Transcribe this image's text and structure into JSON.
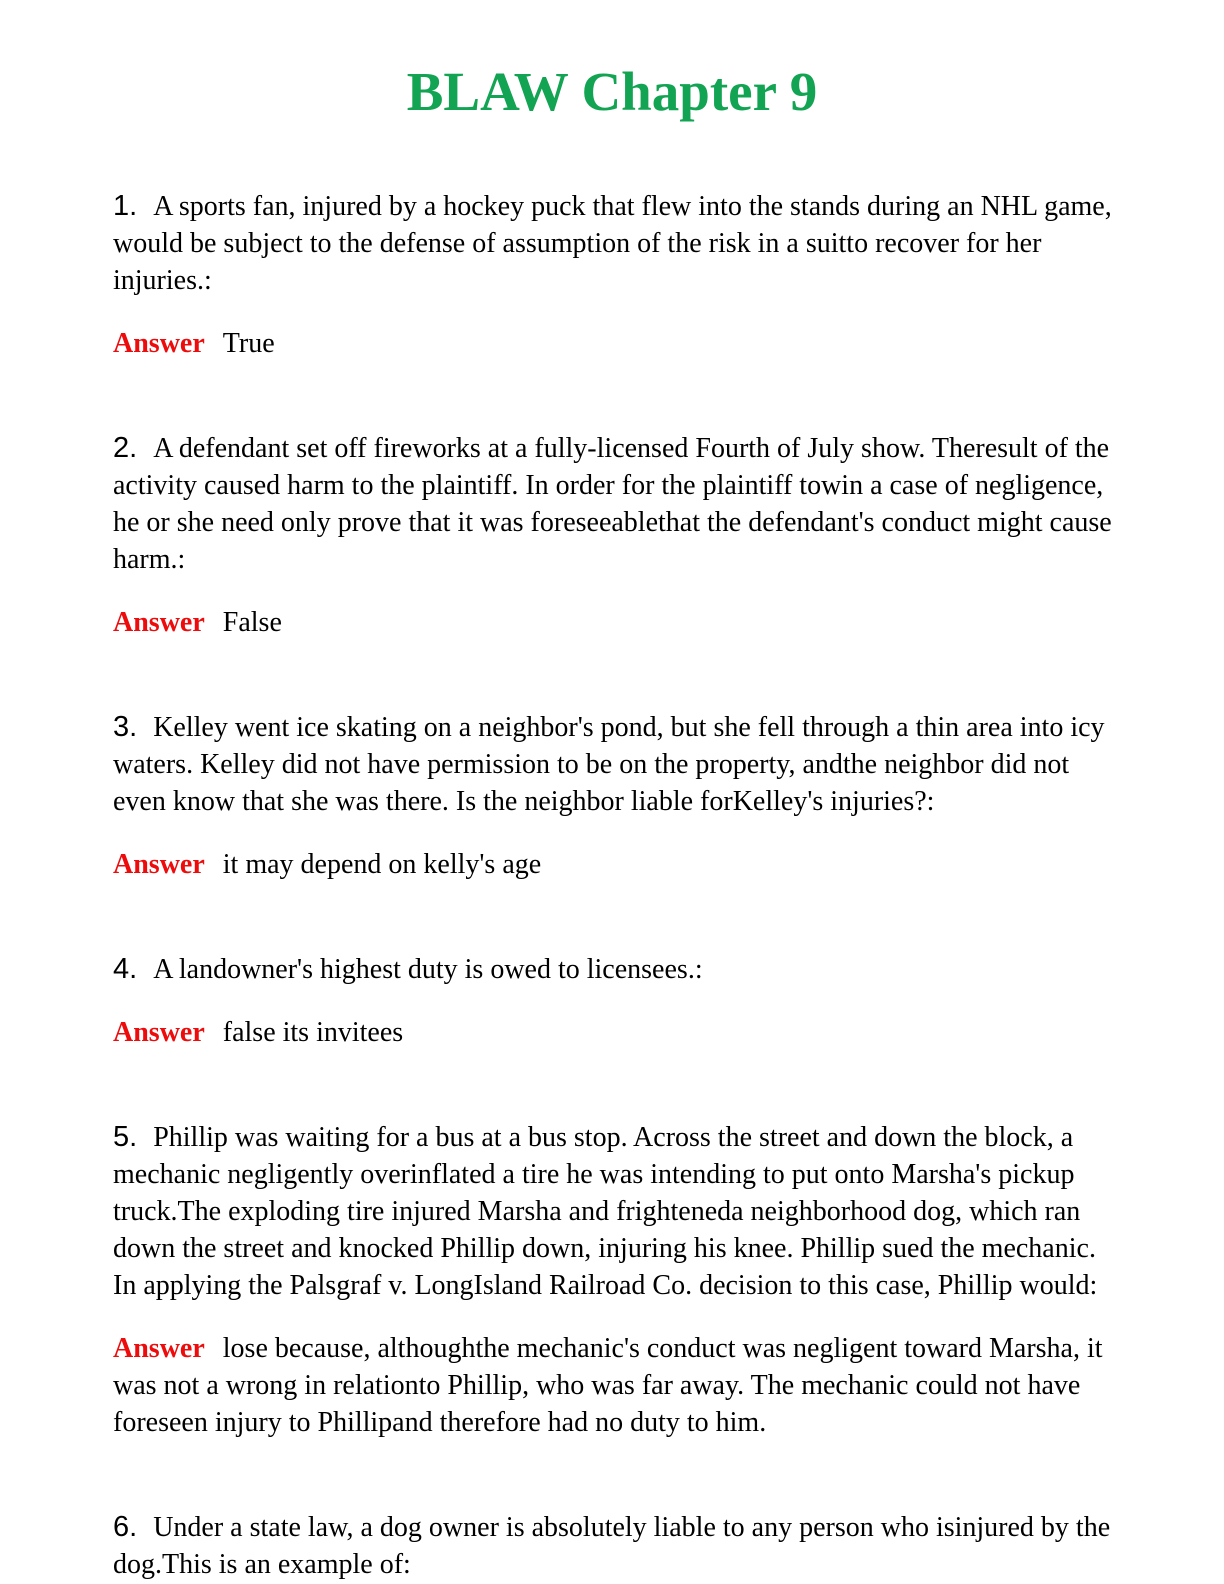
{
  "document": {
    "title": "BLAW Chapter 9",
    "answer_label": "Answer",
    "title_color": "#12a452",
    "answer_label_color": "#ee0b0b"
  },
  "questions": [
    {
      "number": "1.",
      "text": "A sports fan, injured by a hockey puck that flew into the stands during an NHL game, would be subject to the defense of assumption of the risk in a suitto recover for her injuries.:",
      "answer": "True"
    },
    {
      "number": "2.",
      "text": "A defendant set off fireworks at a fully-licensed Fourth of July show. Theresult of the activity caused harm to the plaintiff. In order for the plaintiff towin a case of negligence, he or she need only prove that it was foreseeablethat the defendant's conduct might cause harm.:",
      "answer": "False"
    },
    {
      "number": "3.",
      "text": "Kelley went ice skating on a neighbor's pond, but she fell through a thin area into icy waters. Kelley did not have permission to be on the property, andthe neighbor did not even know that she was there. Is the neighbor liable forKelley's injuries?:",
      "answer": "it may depend on kelly's age"
    },
    {
      "number": "4.",
      "text": "A landowner's highest duty is owed to licensees.:",
      "answer": "false its invitees"
    },
    {
      "number": "5.",
      "text": "Phillip was waiting for a bus at a bus stop. Across the street and down the block, a mechanic negligently overinflated a tire he was intending to put onto Marsha's pickup truck.The exploding tire injured Marsha and frighteneda neighborhood dog, which ran down the street and knocked Phillip down, injuring his knee. Phillip sued the mechanic. In applying the Palsgraf v. LongIsland Railroad Co. decision to this case, Phillip would:",
      "answer": "lose because, althoughthe mechanic's conduct was negligent toward Marsha, it was not a wrong in relationto Phillip, who was far away. The mechanic could not have foreseen injury to Phillipand therefore had no duty to him."
    },
    {
      "number": "6.",
      "text": "Under a state law, a dog owner is absolutely liable to any person who isinjured by the dog.This is an example of:",
      "answer": null
    }
  ]
}
